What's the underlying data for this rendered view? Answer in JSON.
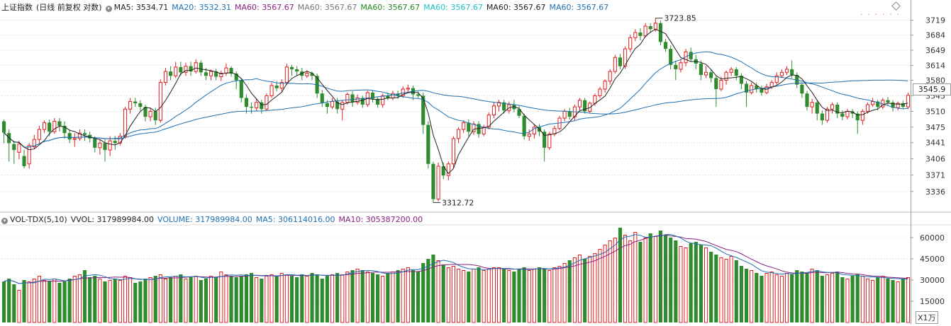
{
  "header": {
    "name": "上证指数",
    "mode": "(日线 前复权 对数)",
    "ma_items": [
      {
        "label": "MA5: 3534.71",
        "color": "#222222"
      },
      {
        "label": "MA20: 3532.31",
        "color": "#1f6fb0"
      },
      {
        "label": "MA60: 3567.67",
        "color": "#8b2080"
      },
      {
        "label": "MA60: 3567.67",
        "color": "#777777"
      },
      {
        "label": "MA60: 3567.67",
        "color": "#1f8a20"
      },
      {
        "label": "MA60: 3567.67",
        "color": "#20c0c0"
      },
      {
        "label": "MA60: 3567.67",
        "color": "#222222"
      },
      {
        "label": "MA60: 3567.67",
        "color": "#1f6fb0"
      }
    ]
  },
  "vol_header": {
    "items": [
      {
        "label": "VOL-TDX(5,10)",
        "color": "#222222"
      },
      {
        "label": "VVOL: 317989984.00",
        "color": "#222222"
      },
      {
        "label": "VOLUME: 317989984.00",
        "color": "#1f6fb0"
      },
      {
        "label": "MA5: 306114016.00",
        "color": "#1f6fb0"
      },
      {
        "label": "MA10: 305387200.00",
        "color": "#8b2080"
      }
    ]
  },
  "price_tag": "3545.9",
  "volume_unit": "X1万",
  "colors": {
    "up": "#e02020",
    "down": "#2e8b2e",
    "ma5": "#222222",
    "ma20": "#1f6fb0",
    "ma60": "#1f6fb0",
    "vma5": "#1f6fb0",
    "vma10": "#8b2080"
  },
  "chart_data": {
    "type": "candlestick",
    "price_axis": {
      "scale": "log",
      "min": 3300,
      "max": 3740,
      "ticks": [
        3719,
        3684,
        3649,
        3614,
        3580,
        3545,
        3510,
        3475,
        3441,
        3406,
        3371,
        3336
      ]
    },
    "volume_axis": {
      "min": 0,
      "max": 68000,
      "ticks": [
        60000,
        45000,
        30000,
        15000
      ]
    },
    "annotations": [
      {
        "label": "3723.85",
        "value": 3723.85
      },
      {
        "label": "3312.72",
        "value": 3312.72
      }
    ],
    "candles": [
      [
        3488,
        3463,
        3492,
        3440
      ],
      [
        3462,
        3440,
        3470,
        3400
      ],
      [
        3438,
        3425,
        3445,
        3395
      ],
      [
        3420,
        3438,
        3445,
        3405
      ],
      [
        3412,
        3390,
        3425,
        3385
      ],
      [
        3395,
        3435,
        3440,
        3385
      ],
      [
        3432,
        3448,
        3458,
        3428
      ],
      [
        3448,
        3470,
        3478,
        3440
      ],
      [
        3470,
        3485,
        3490,
        3462
      ],
      [
        3485,
        3465,
        3492,
        3455
      ],
      [
        3465,
        3488,
        3495,
        3460
      ],
      [
        3488,
        3478,
        3495,
        3465
      ],
      [
        3478,
        3462,
        3488,
        3450
      ],
      [
        3462,
        3448,
        3470,
        3440
      ],
      [
        3448,
        3450,
        3462,
        3432
      ],
      [
        3450,
        3462,
        3470,
        3445
      ],
      [
        3462,
        3458,
        3470,
        3445
      ],
      [
        3458,
        3450,
        3465,
        3442
      ],
      [
        3450,
        3430,
        3455,
        3420
      ],
      [
        3430,
        3440,
        3448,
        3415
      ],
      [
        3440,
        3425,
        3448,
        3400
      ],
      [
        3425,
        3445,
        3455,
        3412
      ],
      [
        3445,
        3440,
        3456,
        3425
      ],
      [
        3440,
        3455,
        3462,
        3435
      ],
      [
        3455,
        3515,
        3520,
        3450
      ],
      [
        3515,
        3532,
        3540,
        3505
      ],
      [
        3532,
        3528,
        3540,
        3520
      ],
      [
        3528,
        3520,
        3535,
        3512
      ],
      [
        3520,
        3498,
        3525,
        3488
      ],
      [
        3498,
        3510,
        3518,
        3488
      ],
      [
        3510,
        3490,
        3518,
        3480
      ],
      [
        3490,
        3575,
        3582,
        3485
      ],
      [
        3575,
        3600,
        3608,
        3568
      ],
      [
        3600,
        3590,
        3612,
        3580
      ],
      [
        3590,
        3610,
        3622,
        3585
      ],
      [
        3610,
        3598,
        3622,
        3590
      ],
      [
        3598,
        3612,
        3620,
        3590
      ],
      [
        3612,
        3600,
        3622,
        3590
      ],
      [
        3600,
        3620,
        3628,
        3595
      ],
      [
        3620,
        3598,
        3625,
        3590
      ],
      [
        3598,
        3590,
        3608,
        3580
      ],
      [
        3590,
        3600,
        3605,
        3580
      ],
      [
        3600,
        3588,
        3606,
        3580
      ],
      [
        3588,
        3596,
        3602,
        3578
      ],
      [
        3596,
        3608,
        3618,
        3590
      ],
      [
        3608,
        3595,
        3612,
        3588
      ],
      [
        3595,
        3580,
        3600,
        3560
      ],
      [
        3580,
        3540,
        3585,
        3530
      ],
      [
        3540,
        3520,
        3548,
        3505
      ],
      [
        3520,
        3518,
        3530,
        3505
      ],
      [
        3518,
        3530,
        3538,
        3510
      ],
      [
        3530,
        3515,
        3536,
        3505
      ],
      [
        3515,
        3545,
        3550,
        3512
      ],
      [
        3545,
        3568,
        3575,
        3540
      ],
      [
        3568,
        3562,
        3578,
        3555
      ],
      [
        3562,
        3575,
        3582,
        3555
      ],
      [
        3575,
        3610,
        3618,
        3570
      ],
      [
        3610,
        3605,
        3615,
        3590
      ],
      [
        3605,
        3600,
        3612,
        3590
      ],
      [
        3600,
        3590,
        3608,
        3580
      ],
      [
        3590,
        3596,
        3603,
        3585
      ],
      [
        3596,
        3590,
        3600,
        3580
      ],
      [
        3590,
        3550,
        3595,
        3540
      ],
      [
        3550,
        3528,
        3558,
        3520
      ],
      [
        3528,
        3520,
        3535,
        3505
      ],
      [
        3520,
        3532,
        3540,
        3515
      ],
      [
        3532,
        3515,
        3540,
        3505
      ],
      [
        3515,
        3530,
        3535,
        3490
      ],
      [
        3530,
        3548,
        3552,
        3525
      ],
      [
        3548,
        3530,
        3555,
        3520
      ],
      [
        3530,
        3540,
        3548,
        3525
      ],
      [
        3540,
        3525,
        3545,
        3518
      ],
      [
        3525,
        3552,
        3556,
        3520
      ],
      [
        3552,
        3538,
        3556,
        3530
      ],
      [
        3538,
        3525,
        3542,
        3518
      ],
      [
        3525,
        3545,
        3550,
        3518
      ],
      [
        3545,
        3540,
        3552,
        3535
      ],
      [
        3540,
        3550,
        3556,
        3535
      ],
      [
        3550,
        3545,
        3556,
        3538
      ],
      [
        3545,
        3560,
        3566,
        3540
      ],
      [
        3560,
        3562,
        3570,
        3552
      ],
      [
        3562,
        3548,
        3568,
        3535
      ],
      [
        3548,
        3545,
        3555,
        3540
      ],
      [
        3545,
        3480,
        3552,
        3460
      ],
      [
        3480,
        3395,
        3488,
        3385
      ],
      [
        3395,
        3320,
        3400,
        3312.72
      ],
      [
        3320,
        3390,
        3398,
        3315
      ],
      [
        3390,
        3370,
        3398,
        3362
      ],
      [
        3370,
        3395,
        3400,
        3360
      ],
      [
        3395,
        3450,
        3455,
        3385
      ],
      [
        3450,
        3470,
        3475,
        3440
      ],
      [
        3470,
        3485,
        3490,
        3462
      ],
      [
        3485,
        3465,
        3492,
        3455
      ],
      [
        3465,
        3482,
        3488,
        3458
      ],
      [
        3482,
        3460,
        3488,
        3452
      ],
      [
        3460,
        3475,
        3480,
        3455
      ],
      [
        3475,
        3502,
        3508,
        3470
      ],
      [
        3502,
        3522,
        3530,
        3495
      ],
      [
        3522,
        3530,
        3536,
        3510
      ],
      [
        3530,
        3512,
        3536,
        3505
      ],
      [
        3512,
        3525,
        3532,
        3505
      ],
      [
        3525,
        3515,
        3536,
        3508
      ],
      [
        3515,
        3500,
        3522,
        3495
      ],
      [
        3500,
        3455,
        3505,
        3448
      ],
      [
        3455,
        3460,
        3470,
        3445
      ],
      [
        3460,
        3475,
        3482,
        3450
      ],
      [
        3475,
        3465,
        3482,
        3455
      ],
      [
        3465,
        3430,
        3470,
        3400
      ],
      [
        3430,
        3460,
        3465,
        3425
      ],
      [
        3460,
        3472,
        3478,
        3455
      ],
      [
        3472,
        3495,
        3500,
        3468
      ],
      [
        3495,
        3510,
        3515,
        3488
      ],
      [
        3510,
        3498,
        3518,
        3492
      ],
      [
        3498,
        3520,
        3525,
        3490
      ],
      [
        3520,
        3535,
        3540,
        3512
      ],
      [
        3535,
        3510,
        3540,
        3505
      ],
      [
        3510,
        3528,
        3532,
        3505
      ],
      [
        3528,
        3545,
        3550,
        3522
      ],
      [
        3545,
        3560,
        3565,
        3540
      ],
      [
        3560,
        3578,
        3582,
        3552
      ],
      [
        3578,
        3600,
        3605,
        3570
      ],
      [
        3600,
        3632,
        3638,
        3595
      ],
      [
        3632,
        3612,
        3640,
        3605
      ],
      [
        3612,
        3652,
        3658,
        3606
      ],
      [
        3652,
        3678,
        3685,
        3645
      ],
      [
        3678,
        3690,
        3698,
        3670
      ],
      [
        3690,
        3682,
        3700,
        3672
      ],
      [
        3682,
        3705,
        3712,
        3678
      ],
      [
        3705,
        3698,
        3712,
        3690
      ],
      [
        3698,
        3712,
        3723.85,
        3692
      ],
      [
        3712,
        3668,
        3718,
        3660
      ],
      [
        3668,
        3652,
        3675,
        3645
      ],
      [
        3652,
        3615,
        3660,
        3605
      ],
      [
        3615,
        3605,
        3625,
        3580
      ],
      [
        3605,
        3620,
        3628,
        3598
      ],
      [
        3620,
        3645,
        3652,
        3612
      ],
      [
        3645,
        3628,
        3655,
        3622
      ],
      [
        3628,
        3618,
        3638,
        3605
      ],
      [
        3618,
        3592,
        3625,
        3580
      ],
      [
        3592,
        3598,
        3612,
        3585
      ],
      [
        3598,
        3585,
        3605,
        3575
      ],
      [
        3585,
        3560,
        3590,
        3520
      ],
      [
        3560,
        3580,
        3588,
        3555
      ],
      [
        3580,
        3598,
        3602,
        3570
      ],
      [
        3598,
        3605,
        3610,
        3590
      ],
      [
        3605,
        3590,
        3610,
        3580
      ],
      [
        3590,
        3572,
        3596,
        3560
      ],
      [
        3572,
        3552,
        3578,
        3520
      ],
      [
        3552,
        3568,
        3575,
        3548
      ],
      [
        3568,
        3560,
        3575,
        3552
      ],
      [
        3560,
        3552,
        3568,
        3545
      ],
      [
        3552,
        3565,
        3572,
        3548
      ],
      [
        3565,
        3575,
        3580,
        3560
      ],
      [
        3575,
        3590,
        3598,
        3570
      ],
      [
        3590,
        3598,
        3605,
        3585
      ],
      [
        3598,
        3605,
        3612,
        3592
      ],
      [
        3605,
        3592,
        3625,
        3585
      ],
      [
        3592,
        3570,
        3598,
        3562
      ],
      [
        3570,
        3550,
        3575,
        3540
      ],
      [
        3550,
        3520,
        3556,
        3512
      ],
      [
        3520,
        3530,
        3538,
        3505
      ],
      [
        3530,
        3505,
        3536,
        3490
      ],
      [
        3505,
        3490,
        3512,
        3480
      ],
      [
        3490,
        3515,
        3520,
        3485
      ],
      [
        3515,
        3525,
        3530,
        3505
      ],
      [
        3525,
        3505,
        3530,
        3495
      ],
      [
        3505,
        3498,
        3512,
        3490
      ],
      [
        3498,
        3510,
        3516,
        3492
      ],
      [
        3510,
        3505,
        3515,
        3495
      ],
      [
        3505,
        3490,
        3510,
        3460
      ],
      [
        3490,
        3510,
        3515,
        3480
      ],
      [
        3510,
        3525,
        3530,
        3505
      ],
      [
        3525,
        3532,
        3540,
        3520
      ],
      [
        3532,
        3520,
        3536,
        3512
      ],
      [
        3520,
        3535,
        3540,
        3515
      ],
      [
        3535,
        3530,
        3542,
        3522
      ],
      [
        3530,
        3518,
        3535,
        3510
      ],
      [
        3518,
        3528,
        3532,
        3512
      ],
      [
        3528,
        3520,
        3534,
        3515
      ],
      [
        3520,
        3545.9,
        3552,
        3515
      ]
    ],
    "volumes": [
      29000,
      31000,
      27000,
      23000,
      30000,
      29000,
      31000,
      33000,
      30000,
      29000,
      31000,
      28000,
      29000,
      31000,
      33000,
      34000,
      37000,
      32000,
      33000,
      31000,
      29000,
      30000,
      31000,
      30000,
      33000,
      32000,
      28000,
      29000,
      31000,
      32000,
      33000,
      34000,
      31000,
      32000,
      33000,
      34000,
      31000,
      32000,
      33000,
      30000,
      31000,
      33000,
      32000,
      36000,
      34000,
      33000,
      32000,
      33000,
      34000,
      35000,
      32000,
      31000,
      33000,
      34000,
      33000,
      35000,
      34000,
      33000,
      32000,
      34000,
      33000,
      35000,
      34000,
      31000,
      33000,
      34000,
      35000,
      34000,
      36000,
      37000,
      38000,
      37000,
      36000,
      35000,
      34000,
      33000,
      35000,
      36000,
      37000,
      38000,
      39000,
      37000,
      36000,
      42000,
      45000,
      48000,
      44000,
      41000,
      39000,
      40000,
      38000,
      37000,
      36000,
      38000,
      39000,
      37000,
      38000,
      39000,
      39000,
      38000,
      37000,
      36000,
      38000,
      39000,
      37000,
      38000,
      39000,
      38000,
      37000,
      39000,
      40000,
      42000,
      44000,
      46000,
      48000,
      45000,
      47000,
      49000,
      52000,
      55000,
      58000,
      60000,
      67000,
      62000,
      58000,
      64000,
      57000,
      60000,
      63000,
      61000,
      65000,
      62000,
      60000,
      58000,
      54000,
      53000,
      56000,
      57000,
      55000,
      53000,
      50000,
      48000,
      46000,
      45000,
      47000,
      44000,
      40000,
      38000,
      37000,
      35000,
      33000,
      35000,
      36000,
      34000,
      33000,
      35000,
      34000,
      37000,
      36000,
      35000,
      38000,
      37000,
      33000,
      34000,
      35000,
      36000,
      32000,
      31000,
      33000,
      34000,
      33000,
      31000,
      30000,
      32000,
      33000,
      31000,
      30000,
      29000,
      31000,
      32000
    ]
  }
}
